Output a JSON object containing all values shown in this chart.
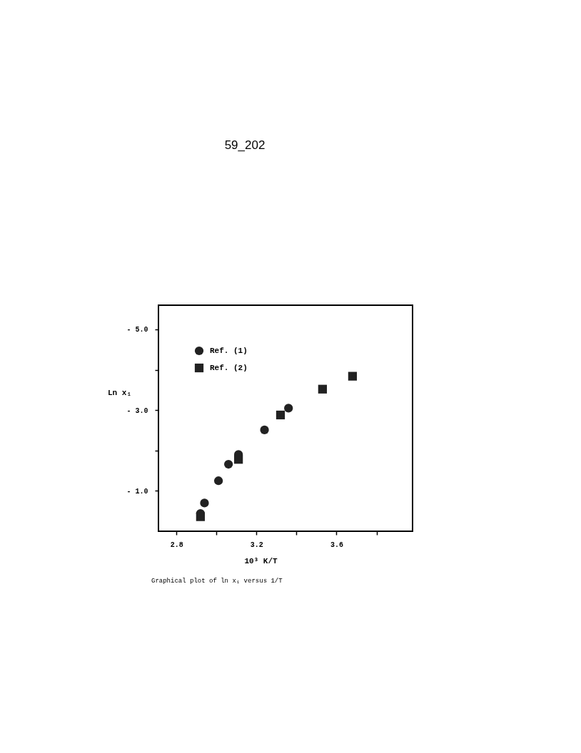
{
  "chart_data": {
    "type": "scatter",
    "title": "59_202",
    "xlabel": "10³ K/T",
    "ylabel": "Ln x₁",
    "annotations": [
      "Graphical plot of ln x₁ versus 1/T"
    ],
    "xlim": [
      2.71,
      3.98
    ],
    "ylim": [
      0.0,
      -5.6
    ],
    "xticks": [
      2.8,
      {
        "value": 3.0,
        "label": null
      },
      3.2,
      {
        "value": 3.4,
        "label": null
      },
      3.6,
      {
        "value": 3.8,
        "label": null
      }
    ],
    "yticks": [
      {
        "value": -5,
        "label": "- 5.0"
      },
      {
        "value": -4,
        "label": null
      },
      {
        "value": -3,
        "label": "- 3.0"
      },
      {
        "value": -2,
        "label": null
      },
      {
        "value": -1,
        "label": "- 1.0"
      }
    ],
    "grid": false,
    "legend": "top left",
    "series": [
      {
        "name": "Ref. (1)",
        "color": "#222222",
        "marker": "circle",
        "x": [
          2.92,
          2.94,
          3.01,
          3.06,
          3.11,
          3.24,
          3.36
        ],
        "values": [
          -0.44,
          -0.7,
          -1.25,
          -1.66,
          -1.9,
          -2.51,
          -3.05
        ]
      },
      {
        "name": "Ref. (2)",
        "color": "#222222",
        "marker": "square",
        "x": [
          2.92,
          3.11,
          3.32,
          3.53,
          3.68
        ],
        "values": [
          -0.36,
          -1.78,
          -2.88,
          -3.52,
          -3.84
        ]
      }
    ]
  }
}
